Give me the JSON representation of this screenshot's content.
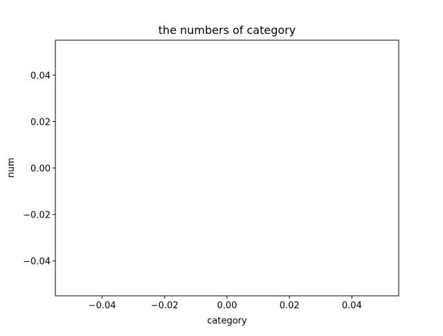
{
  "chart_data": {
    "type": "bar",
    "title": "the numbers of category",
    "xlabel": "category",
    "ylabel": "num",
    "categories": [],
    "values": [],
    "xlim": [
      -0.055,
      0.055
    ],
    "ylim": [
      -0.055,
      0.055
    ],
    "xticks": [
      -0.04,
      -0.02,
      0.0,
      0.02,
      0.04
    ],
    "yticks": [
      -0.04,
      -0.02,
      0.0,
      0.02,
      0.04
    ],
    "xtick_labels": [
      "−0.04",
      "−0.02",
      "0.00",
      "0.02",
      "0.04"
    ],
    "ytick_labels": [
      "−0.04",
      "−0.02",
      "0.00",
      "0.02",
      "0.04"
    ],
    "grid": false,
    "legend": "none"
  }
}
